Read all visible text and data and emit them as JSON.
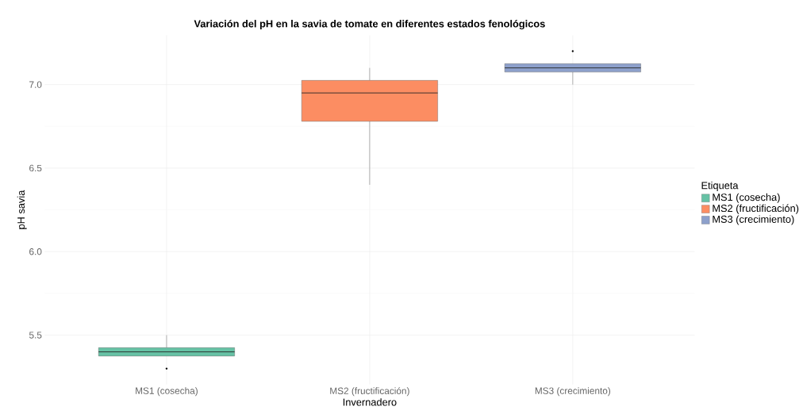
{
  "chart_data": {
    "type": "box",
    "title": "Variación del pH en la savia de tomate en diferentes estados fenológicos",
    "xlabel": "Invernadero",
    "ylabel": "pH savia",
    "legend_title": "Etiqueta",
    "categories": [
      "MS1 (cosecha)",
      "MS2 (fructificación)",
      "MS3 (crecimiento)"
    ],
    "series": [
      {
        "name": "MS1 (cosecha)",
        "color": "#66c2a5",
        "boxes": [
          {
            "low": 5.375,
            "q1": 5.375,
            "median": 5.4,
            "q3": 5.425,
            "high": 5.5,
            "outliers": [
              5.3
            ]
          },
          null,
          null
        ]
      },
      {
        "name": "MS2 (fructificación)",
        "color": "#fc8d62",
        "boxes": [
          null,
          {
            "low": 6.4,
            "q1": 6.78,
            "median": 6.95,
            "q3": 7.025,
            "high": 7.1
          },
          null
        ]
      },
      {
        "name": "MS3 (crecimiento)",
        "color": "#8da0cb",
        "boxes": [
          null,
          null,
          {
            "low": 7.0,
            "q1": 7.075,
            "median": 7.1,
            "q3": 7.125,
            "high": 7.125,
            "outliers": [
              7.2
            ]
          }
        ]
      }
    ],
    "ylim": [
      5.205,
      7.295
    ],
    "yticks": [
      {
        "value": 5.5,
        "label": "5.5"
      },
      {
        "value": 6,
        "label": "6.0"
      },
      {
        "value": 6.5,
        "label": "6.5"
      },
      {
        "value": 7,
        "label": "7.0"
      }
    ],
    "grid": true,
    "legend": "right"
  }
}
